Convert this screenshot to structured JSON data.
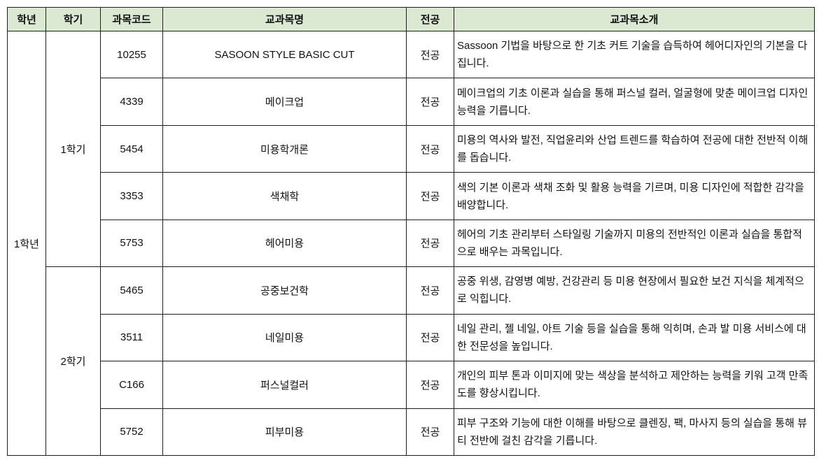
{
  "table": {
    "colors": {
      "header_bg": "#dbe8d2",
      "border": "#1f1f1f",
      "cell_bg": "#ffffff",
      "text": "#111111"
    },
    "headers": {
      "year": "학년",
      "semester": "학기",
      "code": "과목코드",
      "name": "교과목명",
      "major": "전공",
      "intro": "교과목소개"
    },
    "year_label": "1학년",
    "semester_labels": {
      "first": "1학기",
      "second": "2학기"
    },
    "rows": [
      {
        "code": "10255",
        "name": "SASOON STYLE BASIC CUT",
        "major": "전공",
        "intro": "Sassoon 기법을 바탕으로 한 기초 커트 기술을 습득하여 헤어디자인의 기본을 다집니다."
      },
      {
        "code": "4339",
        "name": "메이크업",
        "major": "전공",
        "intro": "메이크업의 기초 이론과 실습을 통해 퍼스널 컬러, 얼굴형에 맞춘 메이크업 디자인 능력을 기릅니다."
      },
      {
        "code": "5454",
        "name": "미용학개론",
        "major": "전공",
        "intro": "미용의 역사와 발전, 직업윤리와 산업 트렌드를 학습하여 전공에 대한 전반적 이해를 돕습니다."
      },
      {
        "code": "3353",
        "name": "색채학",
        "major": "전공",
        "intro": "색의 기본 이론과 색채 조화 및 활용 능력을 기르며, 미용 디자인에 적합한 감각을 배양합니다."
      },
      {
        "code": "5753",
        "name": "헤어미용",
        "major": "전공",
        "intro": "헤어의 기초 관리부터 스타일링 기술까지 미용의 전반적인 이론과 실습을 통합적으로 배우는 과목입니다."
      },
      {
        "code": "5465",
        "name": "공중보건학",
        "major": "전공",
        "intro": "공중 위생, 감영병 예방, 건강관리 등 미용 현장에서 필요한 보건 지식을 체계적으로 익힙니다."
      },
      {
        "code": "3511",
        "name": "네일미용",
        "major": "전공",
        "intro": "네일 관리, 젤 네일, 아트 기술 등을 실습을 통해 익히며, 손과 발 미용 서비스에 대한 전문성을 높입니다."
      },
      {
        "code": "C166",
        "name": "퍼스널컬러",
        "major": "전공",
        "intro": "개인의 피부 톤과 이미지에 맞는 색상을 분석하고 제안하는 능력을 키워 고객 만족도를 향상시킵니다."
      },
      {
        "code": "5752",
        "name": "피부미용",
        "major": "전공",
        "intro": "피부 구조와 기능에 대한 이해를 바탕으로 클렌징, 팩, 마사지 등의 실습을 통해 뷰티 전반에 걸친 감각을 기릅니다."
      }
    ]
  }
}
